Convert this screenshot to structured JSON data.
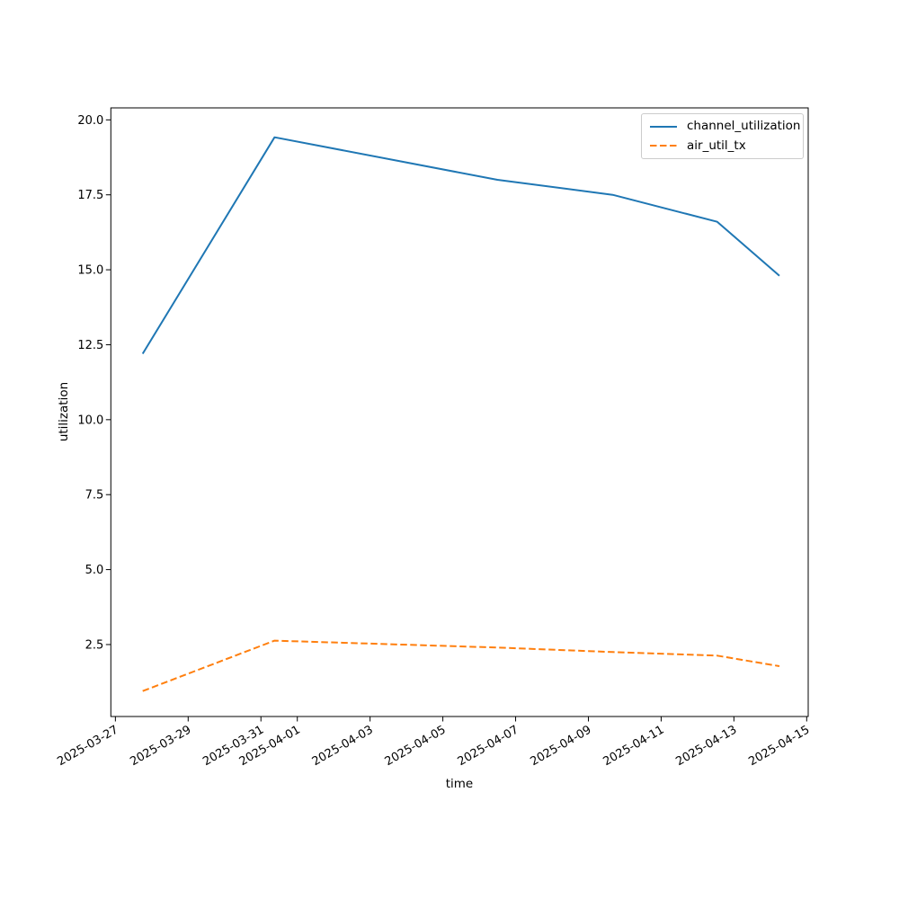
{
  "figure": {
    "background": "#ffffff"
  },
  "chart_data": {
    "type": "line",
    "title": "",
    "xlabel": "time",
    "ylabel": "utilization",
    "grid": false,
    "legend_position": "upper right",
    "x_tick_labels": [
      "2025-03-27",
      "2025-03-29",
      "2025-03-31",
      "2025-04-01",
      "2025-04-03",
      "2025-04-05",
      "2025-04-07",
      "2025-04-09",
      "2025-04-11",
      "2025-04-13",
      "2025-04-15"
    ],
    "y_tick_labels": [
      "2.5",
      "5.0",
      "7.5",
      "10.0",
      "12.5",
      "15.0",
      "17.5",
      "20.0"
    ],
    "xlim": [
      "2025-03-26T21:00",
      "2025-04-15T01:00"
    ],
    "ylim": [
      0.1,
      20.4
    ],
    "series": [
      {
        "name": "channel_utilization",
        "color": "#1f77b4",
        "line_style": "solid",
        "points": [
          [
            "2025-03-27T18:00",
            12.2
          ],
          [
            "2025-03-31T09:00",
            19.42
          ],
          [
            "2025-04-06T12:00",
            18.0
          ],
          [
            "2025-04-09T16:00",
            17.5
          ],
          [
            "2025-04-12T13:00",
            16.6
          ],
          [
            "2025-04-14T06:00",
            14.8
          ]
        ]
      },
      {
        "name": "air_util_tx",
        "color": "#ff7f0e",
        "line_style": "dashed",
        "points": [
          [
            "2025-03-27T18:00",
            0.95
          ],
          [
            "2025-03-31T09:00",
            2.63
          ],
          [
            "2025-04-06T12:00",
            2.4
          ],
          [
            "2025-04-09T16:00",
            2.25
          ],
          [
            "2025-04-12T13:00",
            2.13
          ],
          [
            "2025-04-14T06:00",
            1.78
          ]
        ]
      }
    ]
  }
}
